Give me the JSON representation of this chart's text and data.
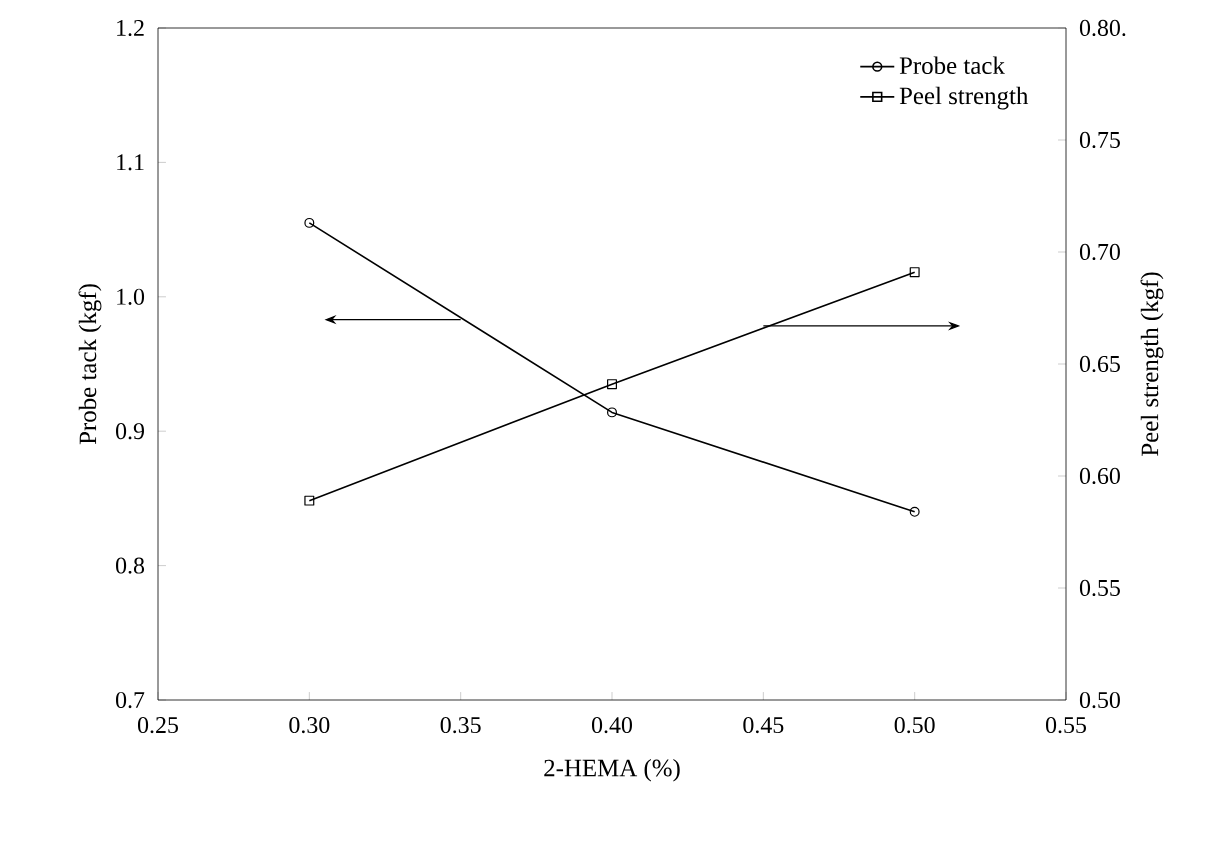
{
  "chart_data": {
    "type": "line",
    "xlabel": "2-HEMA (%)",
    "ylabel": "Probe tack (kgf)",
    "y2label": "Peel strength (kgf)",
    "x": [
      0.3,
      0.4,
      0.5
    ],
    "series": [
      {
        "name": "Probe tack",
        "color": "#000000",
        "marker": "circle",
        "values": [
          1.055,
          0.914,
          0.84
        ]
      },
      {
        "name": "Peel strength",
        "color": "#000000",
        "marker": "square",
        "axis": "y2",
        "values": [
          0.589,
          0.641,
          0.691
        ]
      }
    ],
    "xlim": [
      0.25,
      0.55
    ],
    "xticks": [
      {
        "value": 0.25,
        "label": "0.25"
      },
      {
        "value": 0.3,
        "label": "0.30"
      },
      {
        "value": 0.35,
        "label": "0.35"
      },
      {
        "value": 0.4,
        "label": "0.40"
      },
      {
        "value": 0.45,
        "label": "0.45"
      },
      {
        "value": 0.5,
        "label": "0.50"
      },
      {
        "value": 0.55,
        "label": "0.55"
      }
    ],
    "ylim": [
      0.7,
      1.2
    ],
    "yticks": [
      {
        "value": 0.7,
        "label": "0.7"
      },
      {
        "value": 0.8,
        "label": "0.8"
      },
      {
        "value": 0.9,
        "label": "0.9"
      },
      {
        "value": 1.0,
        "label": "1.0"
      },
      {
        "value": 1.1,
        "label": "1.1"
      },
      {
        "value": 1.2,
        "label": "1.2"
      }
    ],
    "y2lim": [
      0.5,
      0.8
    ],
    "y2ticks": [
      {
        "value": 0.5,
        "label": "0.50"
      },
      {
        "value": 0.55,
        "label": "0.55"
      },
      {
        "value": 0.6,
        "label": "0.60"
      },
      {
        "value": 0.65,
        "label": "0.65"
      },
      {
        "value": 0.7,
        "label": "0.70"
      },
      {
        "value": 0.75,
        "label": "0.75"
      },
      {
        "value": 0.8,
        "label": "0.80."
      }
    ],
    "legend": "top right",
    "grid": false,
    "line_style": "solid"
  }
}
